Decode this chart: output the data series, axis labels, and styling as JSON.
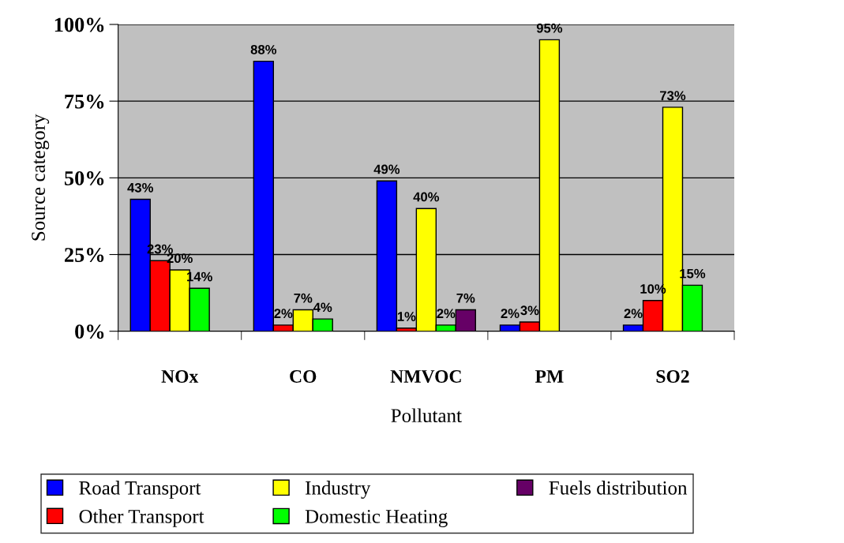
{
  "chart_data": {
    "type": "bar",
    "xlabel": "Pollutant",
    "ylabel": "Source category",
    "categories": [
      "NOx",
      "CO",
      "NMVOC",
      "PM",
      "SO2"
    ],
    "series": [
      {
        "name": "Road Transport",
        "color": "#0000ff",
        "values": [
          43,
          88,
          49,
          2,
          2
        ],
        "value_labels": [
          "43%",
          "88%",
          "49%",
          "2%",
          "2%"
        ]
      },
      {
        "name": "Other Transport",
        "color": "#ff0000",
        "values": [
          23,
          2,
          1,
          3,
          10
        ],
        "value_labels": [
          "23%",
          "2%",
          "1%",
          "3%",
          "10%"
        ]
      },
      {
        "name": "Industry",
        "color": "#ffff00",
        "values": [
          20,
          7,
          40,
          95,
          73
        ],
        "value_labels": [
          "20%",
          "7%",
          "40%",
          "95%",
          "73%"
        ]
      },
      {
        "name": "Domestic Heating",
        "color": "#00ff00",
        "values": [
          14,
          4,
          2,
          null,
          15
        ],
        "value_labels": [
          "14%",
          "4%",
          "2%",
          null,
          "15%"
        ]
      },
      {
        "name": "Fuels distribution",
        "color": "#660066",
        "values": [
          null,
          null,
          7,
          null,
          null
        ],
        "value_labels": [
          null,
          null,
          "7%",
          null,
          null
        ]
      }
    ],
    "ylim": [
      0,
      100
    ],
    "yticks": [
      {
        "value": 0,
        "label": "0%"
      },
      {
        "value": 25,
        "label": "25%"
      },
      {
        "value": 50,
        "label": "50%"
      },
      {
        "value": 75,
        "label": "75%"
      },
      {
        "value": 100,
        "label": "100%"
      }
    ],
    "grid": "y",
    "legend": "bottom"
  }
}
